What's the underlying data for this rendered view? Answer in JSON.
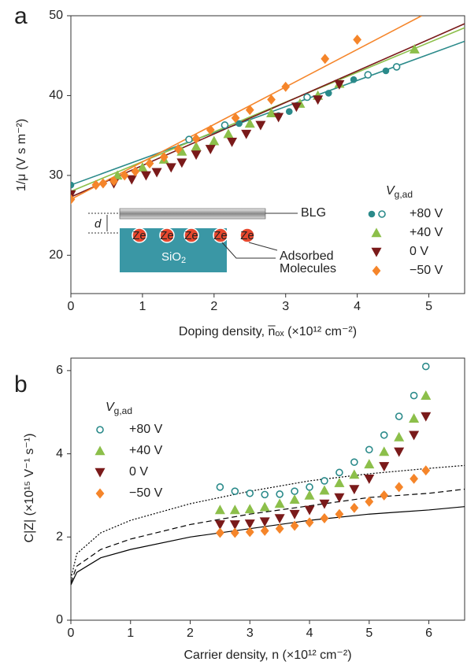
{
  "chart_data": [
    {
      "type": "scatter",
      "panel_label": "a",
      "xlabel": "Doping density, n̅ₒₓ   (×10¹² cm⁻²)",
      "ylabel": "1/μ (V s m⁻²)",
      "legend_title": {
        "main": "V",
        "sub": "g,ad"
      },
      "xlim": [
        0,
        5.5
      ],
      "ylim": [
        15.2,
        50
      ],
      "xticks": [
        0,
        1,
        2,
        3,
        4,
        5
      ],
      "yticks": [
        20,
        30,
        40,
        50
      ],
      "series": [
        {
          "name": "+80 V",
          "color": "#2a8a8a",
          "marker": "circle",
          "filled": true,
          "x": [
            0,
            2.35,
            2.9,
            3.05,
            3.6,
            3.95,
            4.4
          ],
          "values": [
            28.8,
            36.5,
            37.5,
            38,
            40.3,
            42,
            43.1
          ],
          "open_x": [
            1.65,
            2.15,
            3.3,
            4.15,
            4.55
          ],
          "open_values": [
            34.5,
            36.3,
            39.8,
            42.6,
            43.6
          ],
          "fit_x": [
            0,
            5.5
          ],
          "fit_values": [
            28.8,
            46.8
          ]
        },
        {
          "name": "+40 V",
          "color": "#8cbf4a",
          "marker": "triangle",
          "filled": true,
          "x": [
            0.65,
            1.0,
            1.3,
            1.55,
            1.75,
            2.0,
            2.2,
            2.5,
            2.8,
            3.2,
            3.45,
            3.75,
            4.8
          ],
          "values": [
            30,
            31,
            32,
            33,
            33.6,
            34.3,
            35.2,
            36.5,
            37.8,
            39,
            40,
            41.5,
            45.8
          ],
          "fit_x": [
            0,
            5.5
          ],
          "fit_values": [
            28,
            48.5
          ]
        },
        {
          "name": "0 V",
          "color": "#7a1a1a",
          "marker": "triangle-down",
          "filled": true,
          "x": [
            0,
            0.6,
            0.85,
            1.05,
            1.2,
            1.4,
            1.55,
            1.75,
            1.95,
            2.25,
            2.45,
            2.65,
            2.9,
            3.15,
            3.45,
            3.75
          ],
          "values": [
            27.6,
            29,
            29.5,
            30,
            30.4,
            31,
            31.6,
            32.6,
            33.3,
            34.2,
            35.2,
            36.3,
            37.3,
            38.6,
            39.5,
            41.4
          ],
          "fit_x": [
            0,
            5.5
          ],
          "fit_values": [
            27.3,
            49
          ]
        },
        {
          "name": "−50 V",
          "color": "#f5852a",
          "marker": "diamond",
          "filled": true,
          "x": [
            0,
            0.35,
            0.45,
            0.6,
            0.75,
            0.9,
            1.1,
            1.3,
            1.5,
            1.75,
            1.95,
            2.3,
            2.5,
            2.8,
            3.0,
            3.55,
            4.0
          ],
          "values": [
            27,
            28.8,
            29,
            29.3,
            30,
            30.5,
            31.5,
            32.3,
            33.3,
            34.6,
            35.7,
            37.2,
            38.2,
            39.5,
            41.1,
            44.6,
            47
          ],
          "fit_x": [
            0,
            4.9
          ],
          "fit_values": [
            27,
            50
          ]
        }
      ],
      "inset": {
        "top_label": "BLG",
        "gap_label": "d",
        "molecule_label": "Ze",
        "substrate": {
          "main": "SiO",
          "sub": "2"
        },
        "adsorbed_label": [
          "Adsorbed",
          "Molecules"
        ]
      }
    },
    {
      "type": "scatter",
      "panel_label": "b",
      "xlabel": "Carrier density, n  (×10¹² cm⁻²)",
      "ylabel": "C|Z| (×10¹⁵ V⁻¹ s⁻¹)",
      "legend_title": {
        "main": "V",
        "sub": "g,ad"
      },
      "xlim": [
        0,
        6.6
      ],
      "ylim": [
        0,
        6.3
      ],
      "xticks": [
        0,
        1,
        2,
        3,
        4,
        5,
        6
      ],
      "yticks": [
        0,
        2,
        4,
        6
      ],
      "series": [
        {
          "name": "+80 V",
          "color": "#2a8a8a",
          "marker": "circle",
          "filled": false,
          "x": [
            2.5,
            2.75,
            3.0,
            3.25,
            3.5,
            3.75,
            4.0,
            4.25,
            4.5,
            4.75,
            5.0,
            5.25,
            5.5,
            5.75,
            5.95
          ],
          "values": [
            3.2,
            3.1,
            3.05,
            3.02,
            3.03,
            3.1,
            3.2,
            3.35,
            3.55,
            3.8,
            4.1,
            4.45,
            4.9,
            5.4,
            6.1
          ]
        },
        {
          "name": "+40 V",
          "color": "#8cbf4a",
          "marker": "triangle",
          "filled": true,
          "x": [
            2.5,
            2.75,
            3.0,
            3.25,
            3.5,
            3.75,
            4.0,
            4.25,
            4.5,
            4.75,
            5.0,
            5.25,
            5.5,
            5.75,
            5.95
          ],
          "values": [
            2.65,
            2.65,
            2.67,
            2.72,
            2.8,
            2.9,
            3.0,
            3.12,
            3.3,
            3.5,
            3.75,
            4.05,
            4.4,
            4.85,
            5.4
          ]
        },
        {
          "name": "0 V",
          "color": "#7a1a1a",
          "marker": "triangle-down",
          "filled": true,
          "x": [
            2.5,
            2.75,
            3.0,
            3.25,
            3.5,
            3.75,
            4.0,
            4.25,
            4.5,
            4.75,
            5.0,
            5.25,
            5.5,
            5.75,
            5.95
          ],
          "values": [
            2.3,
            2.3,
            2.32,
            2.37,
            2.45,
            2.55,
            2.65,
            2.8,
            2.95,
            3.15,
            3.4,
            3.7,
            4.05,
            4.45,
            4.9
          ]
        },
        {
          "name": "−50 V",
          "color": "#f5852a",
          "marker": "diamond",
          "filled": true,
          "x": [
            2.5,
            2.75,
            3.0,
            3.25,
            3.5,
            3.75,
            4.0,
            4.25,
            4.5,
            4.75,
            5.0,
            5.25,
            5.5,
            5.75,
            5.95
          ],
          "values": [
            2.1,
            2.1,
            2.12,
            2.15,
            2.2,
            2.27,
            2.35,
            2.45,
            2.55,
            2.7,
            2.85,
            3.0,
            3.2,
            3.4,
            3.6
          ]
        }
      ],
      "curves": [
        {
          "style": "solid",
          "color": "#000000",
          "x": [
            0,
            0.1,
            0.5,
            1,
            2,
            3,
            4,
            5,
            6,
            6.6
          ],
          "values": [
            0.85,
            1.15,
            1.5,
            1.7,
            2.0,
            2.2,
            2.4,
            2.55,
            2.65,
            2.73
          ]
        },
        {
          "style": "dashed",
          "color": "#000000",
          "x": [
            0,
            0.1,
            0.5,
            1,
            2,
            3,
            4,
            5,
            6,
            6.6
          ],
          "values": [
            0.9,
            1.3,
            1.7,
            1.95,
            2.3,
            2.55,
            2.75,
            2.95,
            3.05,
            3.15
          ]
        },
        {
          "style": "dotted",
          "color": "#000000",
          "x": [
            0,
            0.1,
            0.5,
            1,
            2,
            3,
            4,
            5,
            6,
            6.6
          ],
          "values": [
            1.0,
            1.6,
            2.1,
            2.4,
            2.8,
            3.1,
            3.35,
            3.52,
            3.65,
            3.72
          ]
        }
      ]
    }
  ]
}
